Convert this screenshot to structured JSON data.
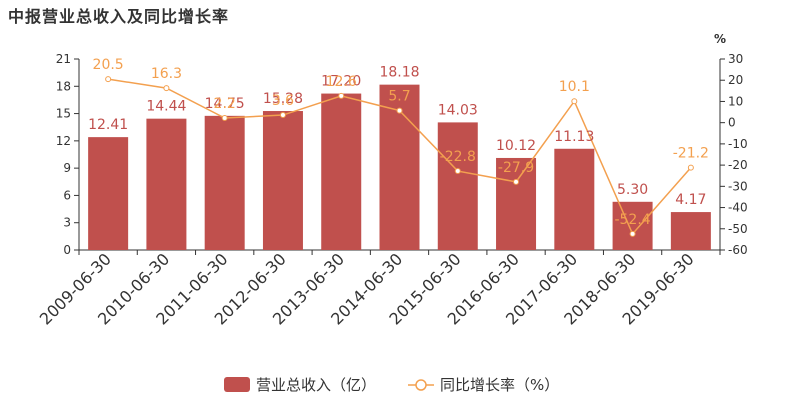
{
  "chart_data": {
    "type": "bar",
    "title": "中报营业总收入及同比增长率",
    "categories": [
      "2009-06-30",
      "2010-06-30",
      "2011-06-30",
      "2012-06-30",
      "2013-06-30",
      "2014-06-30",
      "2015-06-30",
      "2016-06-30",
      "2017-06-30",
      "2018-06-30",
      "2019-06-30"
    ],
    "series": [
      {
        "name": "营业总收入（亿）",
        "type": "bar",
        "axis": "left",
        "color": "#c0504d",
        "values": [
          12.41,
          14.44,
          14.75,
          15.28,
          17.2,
          18.18,
          14.03,
          10.12,
          11.13,
          5.3,
          4.17
        ],
        "labels": [
          "12.41",
          "14.44",
          "14.75",
          "15.28",
          "17.20",
          "18.18",
          "14.03",
          "10.12",
          "11.13",
          "5.30",
          "4.17"
        ]
      },
      {
        "name": "同比增长率（%）",
        "type": "line",
        "axis": "right",
        "color": "#f3a04f",
        "values": [
          20.5,
          16.3,
          2.2,
          3.6,
          12.6,
          5.7,
          -22.8,
          -27.9,
          10.1,
          -52.4,
          -21.2
        ],
        "labels": [
          "20.5",
          "16.3",
          "2.2",
          "3.6",
          "12.6",
          "5.7",
          "-22.8",
          "-27.9",
          "10.1",
          "-52.4",
          "-21.2"
        ]
      }
    ],
    "y_left": {
      "ylim": [
        0,
        21
      ],
      "ticks": [
        "0",
        "3",
        "6",
        "9",
        "12",
        "15",
        "18",
        "21"
      ]
    },
    "y_right": {
      "ylim": [
        -60,
        30
      ],
      "ticks": [
        "-60",
        "-50",
        "-40",
        "-30",
        "-20",
        "-10",
        "0",
        "10",
        "20",
        "30"
      ],
      "unit": "%"
    },
    "legend": {
      "placement": "bottom-center"
    },
    "grid": false
  }
}
